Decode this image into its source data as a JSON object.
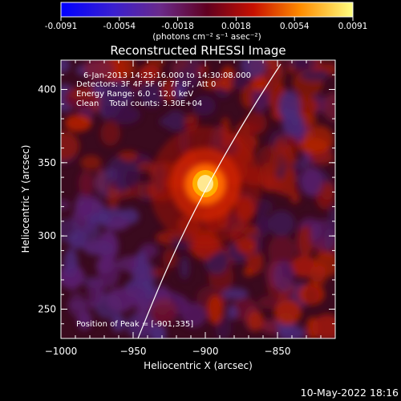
{
  "colorbar": {
    "ticks": [
      "-0.0091",
      "-0.0054",
      "-0.0018",
      "0.0018",
      "0.0054",
      "0.0091"
    ],
    "unit_label": "(photons cm⁻² s⁻¹ asec⁻²)",
    "range": [
      -0.0091,
      0.0091
    ]
  },
  "plot": {
    "title": "Reconstructed RHESSI Image",
    "xlabel": "Heliocentric X (arcsec)",
    "ylabel": "Heliocentric Y (arcsec)",
    "x_ticks": [
      "-1000",
      "-950",
      "-900",
      "-850"
    ],
    "y_ticks": [
      "250",
      "300",
      "350",
      "400"
    ],
    "xlim": [
      -1000,
      -810
    ],
    "ylim": [
      230,
      420
    ],
    "peak": [
      -901,
      335
    ],
    "annotations": {
      "line1": "6-Jan-2013 14:25:16.000 to 14:30:08.000",
      "line2": "Detectors: 3F 4F 5F 6F 7F 8F, Att 0",
      "line3": "Energy Range: 6.0 - 12.0 keV",
      "line4": "Clean    Total counts: 3.30E+04",
      "peak_text": "Position of Peak = [-901,335]"
    }
  },
  "footer": {
    "timestamp": "10-May-2022 18:16"
  }
}
